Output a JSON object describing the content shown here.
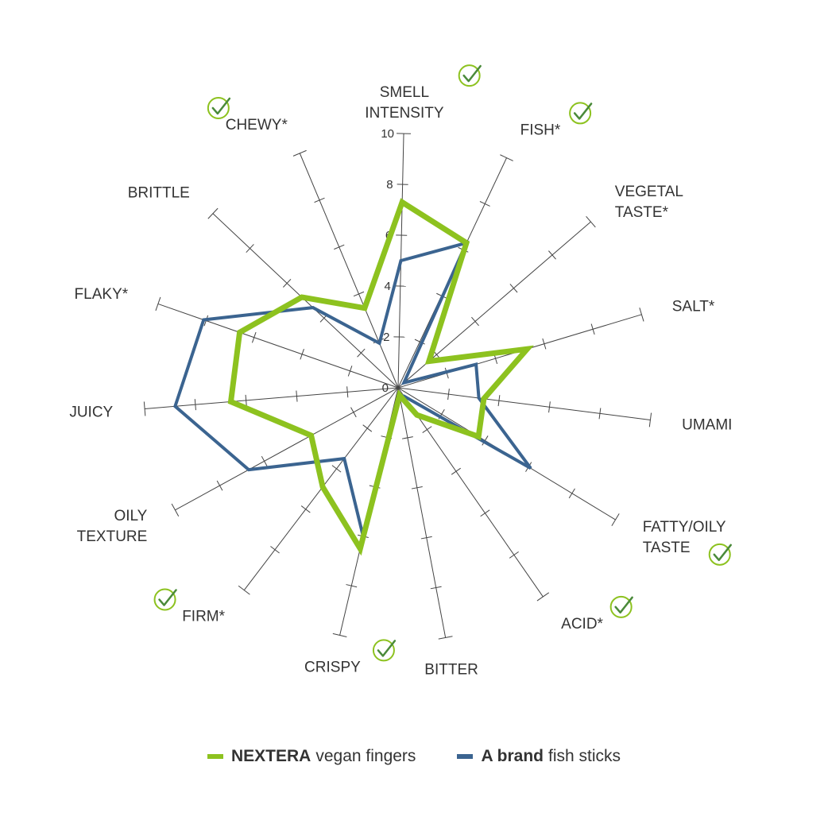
{
  "chart_data": {
    "type": "radar",
    "axes": [
      "SMELL INTENSITY",
      "FISH*",
      "VEGETAL TASTE*",
      "SALT*",
      "UMAMI",
      "FATTY/OILY TASTE",
      "ACID*",
      "BITTER",
      "CRISPY",
      "FIRM*",
      "OILY TEXTURE",
      "JUICY",
      "FLAKY*",
      "BRITTLE",
      "CHEWY*"
    ],
    "axis_labels": [
      [
        "SMELL",
        "INTENSITY"
      ],
      [
        "FISH*"
      ],
      [
        "VEGETAL",
        "TASTE*"
      ],
      [
        "SALT*"
      ],
      [
        "UMAMI"
      ],
      [
        "FATTY/OILY",
        "TASTE"
      ],
      [
        "ACID*"
      ],
      [
        "BITTER"
      ],
      [
        "CRISPY"
      ],
      [
        "FIRM*"
      ],
      [
        "OILY",
        "TEXTURE"
      ],
      [
        "JUICY"
      ],
      [
        "FLAKY*"
      ],
      [
        "BRITTLE"
      ],
      [
        "CHEWY*"
      ]
    ],
    "checked_axes": [
      "SMELL INTENSITY",
      "FISH*",
      "FATTY/OILY TASTE",
      "ACID*",
      "CRISPY",
      "FIRM*",
      "CHEWY*"
    ],
    "scale": {
      "min": 0,
      "max": 10,
      "ticks": [
        "0",
        "2",
        "4",
        "6",
        "8",
        "10"
      ]
    },
    "series": [
      {
        "name_bold": "NEXTERA",
        "name_rest": "vegan fingers",
        "color": "#8dc21f",
        "values": [
          7.3,
          6.3,
          1.6,
          5.3,
          3.4,
          3.7,
          1.3,
          0.3,
          6.5,
          4.9,
          3.9,
          6.6,
          6.6,
          5.2,
          3.4
        ]
      },
      {
        "name_bold": "A brand",
        "name_rest": "fish sticks",
        "color": "#3b6490",
        "values": [
          5.0,
          6.3,
          0.3,
          3.2,
          3.2,
          6.1,
          0.4,
          0.3,
          6.0,
          3.5,
          6.7,
          8.8,
          8.1,
          4.6,
          1.9
        ]
      }
    ]
  }
}
